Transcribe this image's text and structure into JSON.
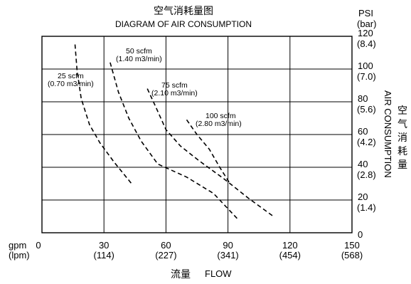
{
  "title_cn": "空气消耗量图",
  "title_en": "DIAGRAM OF AIR CONSUMPTION",
  "xaxis": {
    "label_cn": "流量",
    "label_en": "FLOW",
    "unit_primary": "gpm",
    "unit_secondary": "(lpm)",
    "ticks": [
      {
        "value": 0,
        "label": "0",
        "sub": ""
      },
      {
        "value": 30,
        "label": "30",
        "sub": "(114)"
      },
      {
        "value": 60,
        "label": "60",
        "sub": "(227)"
      },
      {
        "value": 90,
        "label": "90",
        "sub": "(341)"
      },
      {
        "value": 120,
        "label": "120",
        "sub": "(454)"
      },
      {
        "value": 150,
        "label": "150",
        "sub": "(568)"
      }
    ]
  },
  "yaxis": {
    "unit_primary": "PSI",
    "unit_secondary": "(bar)",
    "label_en": "AIR CONSUMPTION",
    "label_cn": "空气消耗量",
    "ticks": [
      {
        "value": 0,
        "label": "0",
        "sub": ""
      },
      {
        "value": 20,
        "label": "20",
        "sub": "(1.4)"
      },
      {
        "value": 40,
        "label": "40",
        "sub": "(2.8)"
      },
      {
        "value": 60,
        "label": "60",
        "sub": "(4.2)"
      },
      {
        "value": 80,
        "label": "80",
        "sub": "(5.6)"
      },
      {
        "value": 100,
        "label": "100",
        "sub": "(7.0)"
      },
      {
        "value": 120,
        "label": "120",
        "sub": "(8.4)"
      }
    ]
  },
  "chart_data": {
    "type": "line",
    "xlim": [
      0,
      150
    ],
    "ylim": [
      0,
      120
    ],
    "grid": true,
    "series": [
      {
        "name": "25 scfm",
        "sub": "(0.70 m3/min)",
        "x": [
          16,
          17,
          19,
          23,
          28,
          35,
          44
        ],
        "y": [
          115,
          99,
          82,
          66,
          55,
          43,
          29
        ]
      },
      {
        "name": "50 scfm",
        "sub": "(1.40 m3/min)",
        "x": [
          33,
          37,
          42,
          48,
          56,
          70,
          83,
          95
        ],
        "y": [
          104,
          86,
          70,
          56,
          42,
          34,
          24,
          8
        ]
      },
      {
        "name": "75 scfm",
        "sub": "(2.10 m3/min)",
        "x": [
          51,
          55,
          60,
          67,
          76,
          88,
          100,
          112
        ],
        "y": [
          88,
          77,
          63,
          53,
          44,
          33,
          21,
          10
        ]
      },
      {
        "name": "100 scfm",
        "sub": "(2.80 m3/min)",
        "x": [
          70,
          75,
          81,
          86,
          91
        ],
        "y": [
          69,
          60,
          51,
          40,
          30
        ]
      }
    ]
  }
}
